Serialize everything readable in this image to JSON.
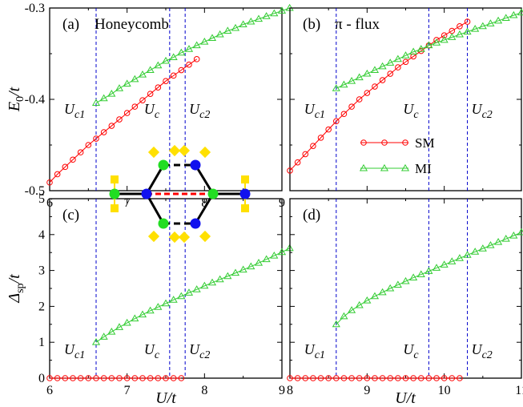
{
  "chart_data": [
    {
      "panel": "a",
      "type": "line",
      "panel_label": "(a)",
      "title": "Honeycomb",
      "xlim": [
        6,
        9
      ],
      "ylim": [
        -0.5,
        -0.3
      ],
      "xticks": [
        "6",
        "7",
        "8",
        "9"
      ],
      "yticks": [
        "-0.5",
        "-0.4",
        "-0.3"
      ],
      "ylabel": "E_0/t",
      "vlines": [
        {
          "x": 6.6,
          "label": "U_c1"
        },
        {
          "x": 7.55,
          "label": "U_c"
        },
        {
          "x": 7.75,
          "label": "U_c2"
        }
      ],
      "series": [
        {
          "name": "SM",
          "x_start": 6.0,
          "x_step": 0.1,
          "values": [
            -0.491,
            -0.482,
            -0.474,
            -0.466,
            -0.458,
            -0.45,
            -0.443,
            -0.436,
            -0.429,
            -0.422,
            -0.415,
            -0.408,
            -0.401,
            -0.394,
            -0.387,
            -0.38,
            -0.374,
            -0.368,
            -0.362,
            -0.356
          ]
        },
        {
          "name": "MI",
          "x_start": 6.6,
          "x_step": 0.1,
          "values": [
            -0.404,
            -0.399,
            -0.394,
            -0.388,
            -0.383,
            -0.378,
            -0.373,
            -0.368,
            -0.363,
            -0.358,
            -0.354,
            -0.349,
            -0.345,
            -0.341,
            -0.337,
            -0.333,
            -0.329,
            -0.325,
            -0.322,
            -0.318,
            -0.315,
            -0.312,
            -0.309,
            -0.306,
            -0.303,
            -0.3
          ]
        }
      ]
    },
    {
      "panel": "b",
      "type": "line",
      "panel_label": "(b)",
      "title": "π - flux",
      "xlim": [
        8,
        11
      ],
      "ylim": [
        -0.5,
        -0.3
      ],
      "xticks": [],
      "yticks": [],
      "vlines": [
        {
          "x": 8.6,
          "label": "U_c1"
        },
        {
          "x": 9.8,
          "label": "U_c"
        },
        {
          "x": 10.3,
          "label": "U_c2"
        }
      ],
      "series": [
        {
          "name": "SM",
          "x_start": 8.0,
          "x_step": 0.1,
          "values": [
            -0.478,
            -0.469,
            -0.46,
            -0.451,
            -0.442,
            -0.433,
            -0.424,
            -0.416,
            -0.408,
            -0.4,
            -0.393,
            -0.386,
            -0.379,
            -0.372,
            -0.365,
            -0.359,
            -0.353,
            -0.347,
            -0.341,
            -0.335,
            -0.33,
            -0.325,
            -0.32,
            -0.315
          ]
        },
        {
          "name": "MI",
          "x_start": 8.6,
          "x_step": 0.1,
          "values": [
            -0.388,
            -0.384,
            -0.38,
            -0.376,
            -0.372,
            -0.368,
            -0.364,
            -0.36,
            -0.356,
            -0.352,
            -0.348,
            -0.345,
            -0.341,
            -0.338,
            -0.335,
            -0.332,
            -0.329,
            -0.326,
            -0.323,
            -0.32,
            -0.317,
            -0.314,
            -0.311,
            -0.308,
            -0.305
          ]
        }
      ]
    },
    {
      "panel": "c",
      "type": "line",
      "panel_label": "(c)",
      "xlim": [
        6,
        9
      ],
      "ylim": [
        0,
        5
      ],
      "xticks": [
        "6",
        "7",
        "8",
        "9"
      ],
      "yticks": [
        "0",
        "1",
        "2",
        "3",
        "4",
        "5"
      ],
      "xlabel": "U/t",
      "ylabel": "Δ_sp/t",
      "vlines": [
        {
          "x": 6.6,
          "label": "U_c1"
        },
        {
          "x": 7.55,
          "label": "U_c"
        },
        {
          "x": 7.75,
          "label": "U_c2"
        }
      ],
      "series": [
        {
          "name": "SM",
          "x_start": 6.0,
          "x_step": 0.1,
          "values": [
            0,
            0,
            0,
            0,
            0,
            0,
            0,
            0,
            0,
            0,
            0,
            0,
            0,
            0,
            0,
            0,
            0,
            0
          ]
        },
        {
          "name": "MI",
          "x_start": 6.6,
          "x_step": 0.1,
          "values": [
            1.0,
            1.15,
            1.29,
            1.42,
            1.54,
            1.66,
            1.77,
            1.88,
            1.98,
            2.08,
            2.18,
            2.28,
            2.38,
            2.47,
            2.57,
            2.66,
            2.75,
            2.84,
            2.93,
            3.02,
            3.11,
            3.21,
            3.31,
            3.41,
            3.51,
            3.62
          ]
        }
      ]
    },
    {
      "panel": "d",
      "type": "line",
      "panel_label": "(d)",
      "xlim": [
        8,
        11
      ],
      "ylim": [
        0,
        5
      ],
      "xticks": [
        "8",
        "9",
        "10",
        "11"
      ],
      "yticks": [],
      "xlabel": "U/t",
      "vlines": [
        {
          "x": 8.6,
          "label": "U_c1"
        },
        {
          "x": 9.8,
          "label": "U_c"
        },
        {
          "x": 10.3,
          "label": "U_c2"
        }
      ],
      "series": [
        {
          "name": "SM",
          "x_start": 8.0,
          "x_step": 0.1,
          "values": [
            0,
            0,
            0,
            0,
            0,
            0,
            0,
            0,
            0,
            0,
            0,
            0,
            0,
            0,
            0,
            0,
            0,
            0,
            0,
            0,
            0,
            0,
            0
          ]
        },
        {
          "name": "MI",
          "x_start": 8.6,
          "x_step": 0.1,
          "values": [
            1.5,
            1.72,
            1.89,
            2.03,
            2.16,
            2.28,
            2.39,
            2.5,
            2.6,
            2.7,
            2.8,
            2.89,
            2.98,
            3.07,
            3.16,
            3.25,
            3.34,
            3.43,
            3.52,
            3.61,
            3.7,
            3.79,
            3.88,
            3.97,
            4.06
          ]
        }
      ]
    }
  ],
  "legend": {
    "placement": "right of panel (b)",
    "items": [
      {
        "name": "SM",
        "color": "#ff0000",
        "marker": "circle"
      },
      {
        "name": "MI",
        "color": "#33cc33",
        "marker": "triangle"
      }
    ]
  },
  "colors": {
    "SM": "#ff0000",
    "MI": "#33cc33",
    "vline": "#0000cc"
  },
  "inset": {
    "description_visible": "hexagon lattice diagram",
    "colors": {
      "green_site": "#22dd22",
      "blue_site": "#1111ee",
      "yellow": "#ffe000",
      "bond": "#000000",
      "red_bond": "#ff0000"
    }
  }
}
